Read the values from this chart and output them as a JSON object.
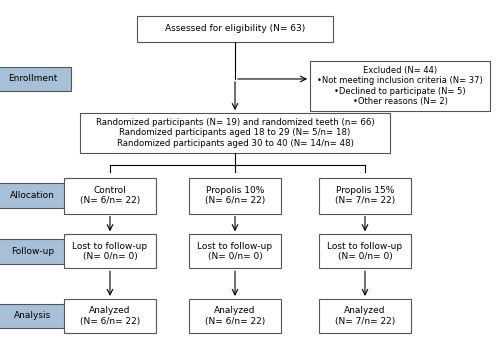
{
  "bg_color": "#ffffff",
  "box_edge_color": "#555555",
  "blue_fill": "#a8bfd8",
  "white_fill": "#ffffff",
  "eligibility_text": "Assessed for eligibility (N= 63)",
  "excluded_text": "Excluded (N= 44)\n•Not meeting inclusion criteria (N= 37)\n•Declined to participate (N= 5)\n•Other reasons (N= 2)",
  "enrollment_label": "Enrollment",
  "randomized_text": "Randomized participants (N= 19) and randomized teeth (n= 66)\nRandomized participants aged 18 to 29 (N= 5/n= 18)\nRandomized participants aged 30 to 40 (N= 14/n= 48)",
  "allocation_label": "Allocation",
  "followup_label": "Follow-up",
  "analysis_label": "Analysis",
  "control_text": "Control\n(N= 6/n= 22)",
  "propolis10_text": "Propolis 10%\n(N= 6/n= 22)",
  "propolis15_text": "Propolis 15%\n(N= 7/n= 22)",
  "lost_control_text": "Lost to follow-up\n(N= 0/n= 0)",
  "lost_propolis10_text": "Lost to follow-up\n(N= 0/n= 0)",
  "lost_propolis15_text": "Lost to follow-up\n(N= 0/n= 0)",
  "analyzed_control_text": "Analyzed\n(N= 6/n= 22)",
  "analyzed_propolis10_text": "Analyzed\n(N= 6/n= 22)",
  "analyzed_propolis15_text": "Analyzed\n(N= 7/n= 22)",
  "fs": 6.5,
  "fs_excl": 6.0,
  "fs_rand": 6.2,
  "lw": 0.8
}
